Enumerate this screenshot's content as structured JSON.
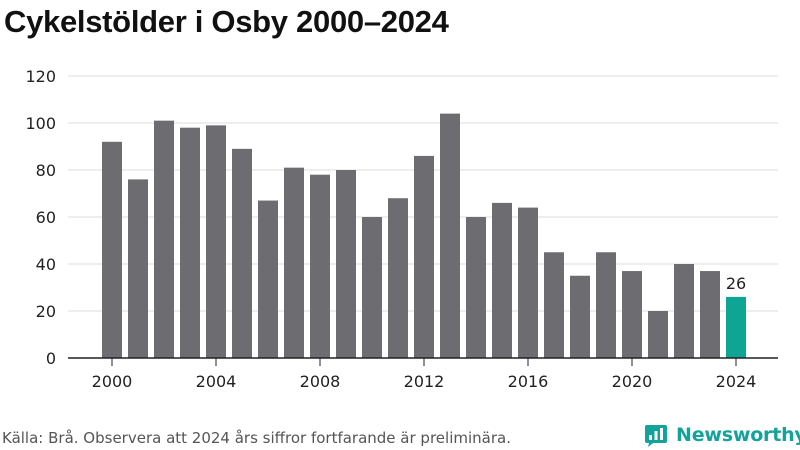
{
  "title": "Cykelstölder i Osby 2000–2024",
  "footer": {
    "source": "Källa: Brå. Observera att 2024 års siffror fortfarande är preliminära."
  },
  "logo": {
    "text": "Newsworthy",
    "icon": "bar-chart-logo-icon"
  },
  "colors": {
    "bar": "#6d6c71",
    "highlight": "#0ea595",
    "grid": "#dddddd",
    "axis": "#222222",
    "brand": "#12a39a"
  },
  "chart_data": {
    "type": "bar",
    "title": "Cykelstölder i Osby 2000–2024",
    "xlabel": "",
    "ylabel": "",
    "x": [
      2000,
      2001,
      2002,
      2003,
      2004,
      2005,
      2006,
      2007,
      2008,
      2009,
      2010,
      2011,
      2012,
      2013,
      2014,
      2015,
      2016,
      2017,
      2018,
      2019,
      2020,
      2021,
      2022,
      2023,
      2024
    ],
    "values": [
      92,
      76,
      101,
      98,
      99,
      89,
      67,
      81,
      78,
      80,
      60,
      68,
      86,
      104,
      60,
      66,
      64,
      45,
      35,
      45,
      37,
      20,
      40,
      37,
      26
    ],
    "ylim": [
      0,
      120
    ],
    "yticks": [
      0,
      20,
      40,
      60,
      80,
      100,
      120
    ],
    "xticks": [
      2000,
      2004,
      2008,
      2012,
      2016,
      2020,
      2024
    ],
    "highlight": [
      2024
    ],
    "data_labels": [
      {
        "x": 2024,
        "text": "26"
      }
    ],
    "grid": "horizontal",
    "legend": "none"
  }
}
